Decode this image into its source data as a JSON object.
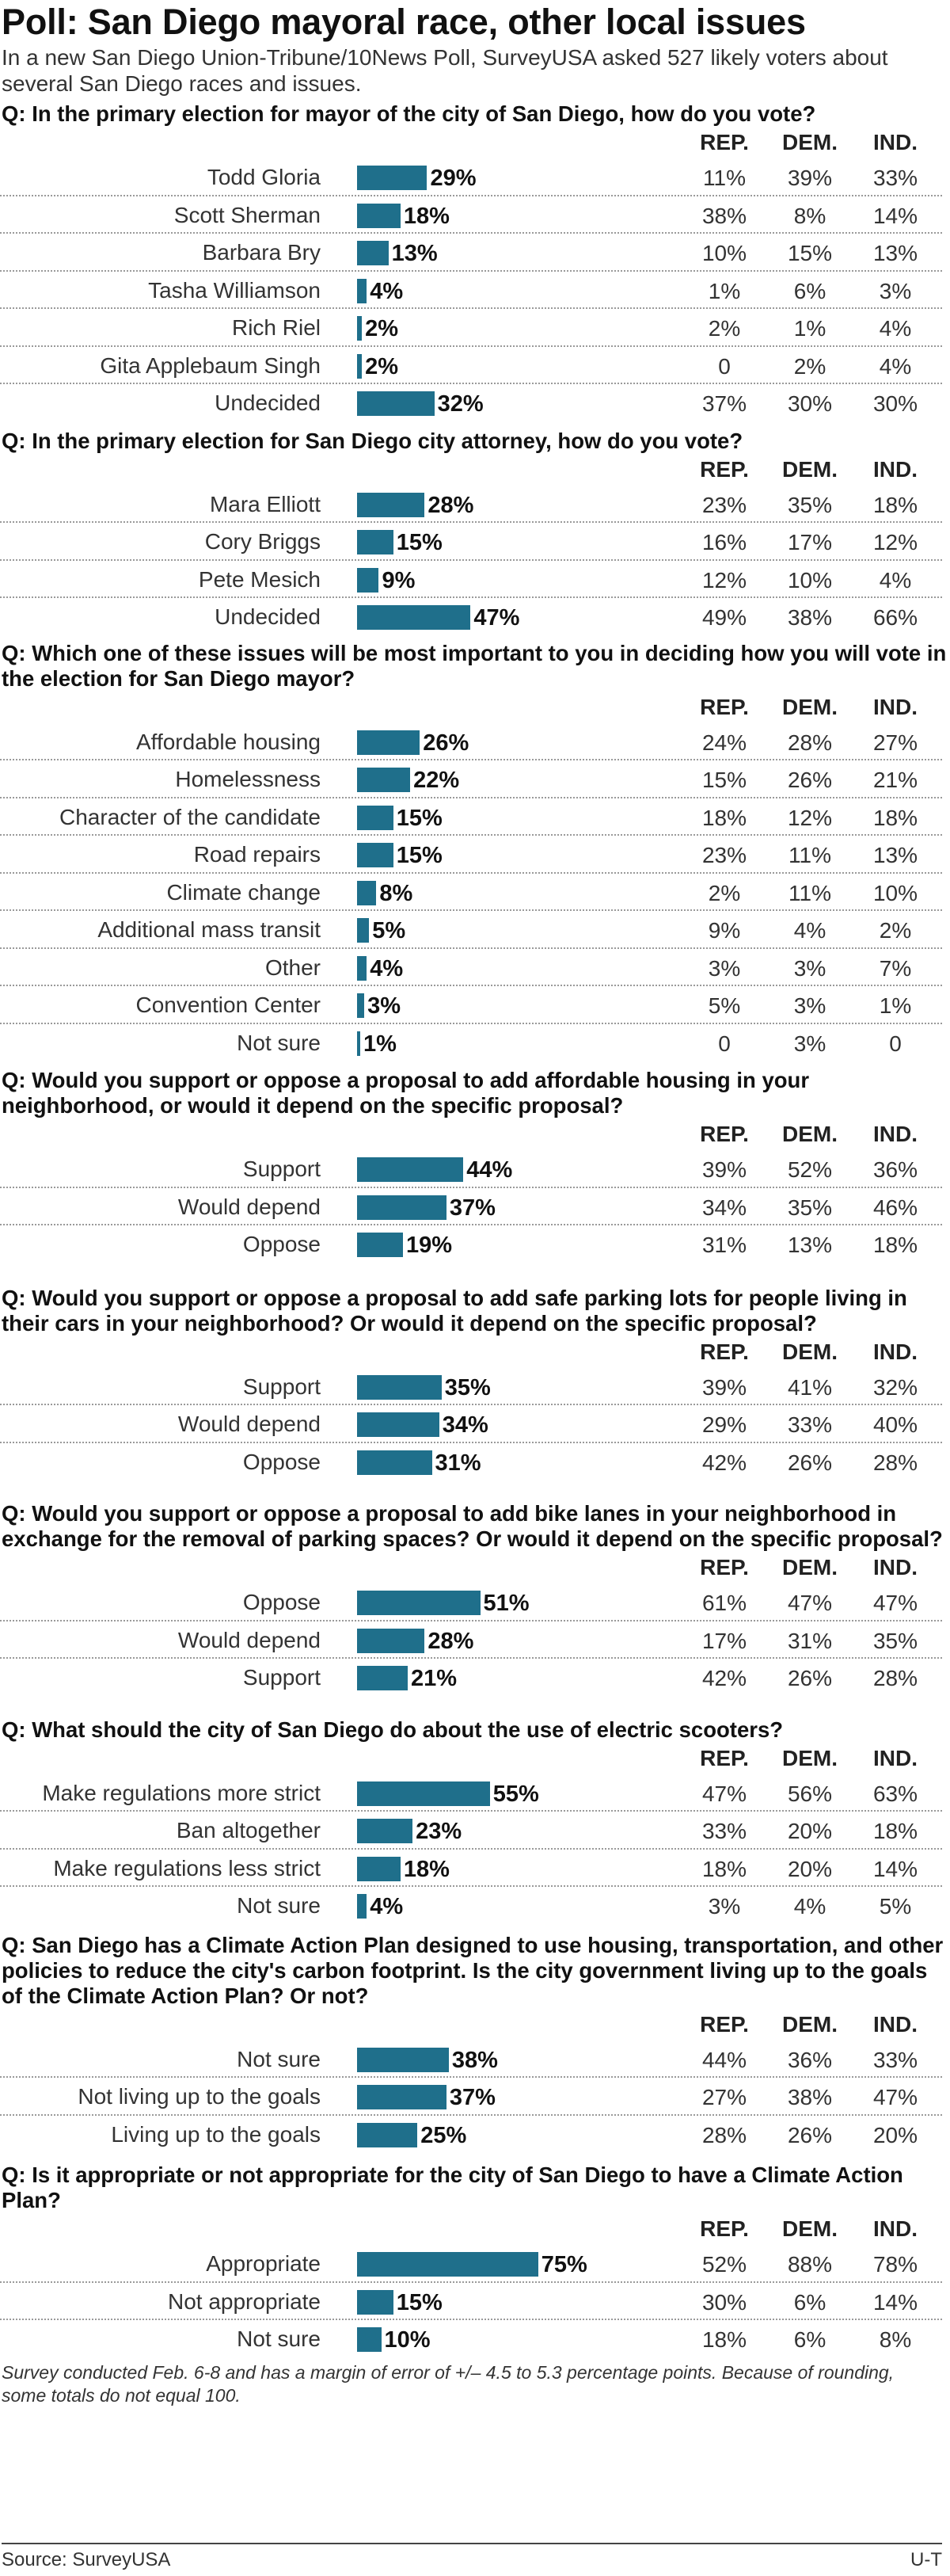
{
  "title": "Poll: San Diego mayoral race, other local issues",
  "intro": "In a new San Diego Union-Tribune/10News Poll, SurveyUSA asked 527 likely voters about several San Diego races and issues.",
  "column_headers": [
    "REP.",
    "DEM.",
    "IND."
  ],
  "colors": {
    "bar": "#1f6f8b"
  },
  "chart_data": [
    {
      "type": "bar",
      "title": "Q: In the primary election for mayor of the city of San Diego, how do you vote?",
      "categories": [
        "Todd Gloria",
        "Scott Sherman",
        "Barbara Bry",
        "Tasha Williamson",
        "Rich Riel",
        "Gita Applebaum Singh",
        "Undecided"
      ],
      "values": [
        29,
        18,
        13,
        4,
        2,
        2,
        32
      ],
      "labels": [
        "29%",
        "18%",
        "13%",
        "4%",
        "2%",
        "2%",
        "32%"
      ],
      "table": [
        [
          "11%",
          "39%",
          "33%"
        ],
        [
          "38%",
          "8%",
          "14%"
        ],
        [
          "10%",
          "15%",
          "13%"
        ],
        [
          "1%",
          "6%",
          "3%"
        ],
        [
          "2%",
          "1%",
          "4%"
        ],
        [
          "0",
          "2%",
          "4%"
        ],
        [
          "37%",
          "30%",
          "30%"
        ]
      ]
    },
    {
      "type": "bar",
      "title": "Q: In the primary election for San Diego city attorney, how do you vote?",
      "categories": [
        "Mara Elliott",
        "Cory Briggs",
        "Pete Mesich",
        "Undecided"
      ],
      "values": [
        28,
        15,
        9,
        47
      ],
      "labels": [
        "28%",
        "15%",
        "9%",
        "47%"
      ],
      "table": [
        [
          "23%",
          "35%",
          "18%"
        ],
        [
          "16%",
          "17%",
          "12%"
        ],
        [
          "12%",
          "10%",
          "4%"
        ],
        [
          "49%",
          "38%",
          "66%"
        ]
      ]
    },
    {
      "type": "bar",
      "title": "Q: Which one of these issues will be most important to you in deciding how you will vote in the election for San Diego mayor?",
      "categories": [
        "Affordable housing",
        "Homelessness",
        "Character of the candidate",
        "Road repairs",
        "Climate change",
        "Additional mass transit",
        "Other",
        "Convention Center",
        "Not sure"
      ],
      "values": [
        26,
        22,
        15,
        15,
        8,
        5,
        4,
        3,
        1
      ],
      "labels": [
        "26%",
        "22%",
        "15%",
        "15%",
        "8%",
        "5%",
        "4%",
        "3%",
        "1%"
      ],
      "table": [
        [
          "24%",
          "28%",
          "27%"
        ],
        [
          "15%",
          "26%",
          "21%"
        ],
        [
          "18%",
          "12%",
          "18%"
        ],
        [
          "23%",
          "11%",
          "13%"
        ],
        [
          "2%",
          "11%",
          "10%"
        ],
        [
          "9%",
          "4%",
          "2%"
        ],
        [
          "3%",
          "3%",
          "7%"
        ],
        [
          "5%",
          "3%",
          "1%"
        ],
        [
          "0",
          "3%",
          "0"
        ]
      ]
    },
    {
      "type": "bar",
      "title": "Q: Would you support or oppose a proposal to add affordable housing in your neighborhood, or would it depend on the specific proposal?",
      "categories": [
        "Support",
        "Would depend",
        "Oppose"
      ],
      "values": [
        44,
        37,
        19
      ],
      "labels": [
        "44%",
        "37%",
        "19%"
      ],
      "table": [
        [
          "39%",
          "52%",
          "36%"
        ],
        [
          "34%",
          "35%",
          "46%"
        ],
        [
          "31%",
          "13%",
          "18%"
        ]
      ]
    },
    {
      "type": "bar",
      "title": "Q: Would you support or oppose a proposal to add safe parking lots for people living in their cars in your neighborhood? Or would it depend on the specific proposal?",
      "categories": [
        "Support",
        "Would depend",
        "Oppose"
      ],
      "values": [
        35,
        34,
        31
      ],
      "labels": [
        "35%",
        "34%",
        "31%"
      ],
      "table": [
        [
          "39%",
          "41%",
          "32%"
        ],
        [
          "29%",
          "33%",
          "40%"
        ],
        [
          "42%",
          "26%",
          "28%"
        ]
      ]
    },
    {
      "type": "bar",
      "title": "Q: Would you support or oppose a proposal to add bike lanes in your neighborhood in exchange for the removal of parking spaces? Or would it depend on the specific proposal?",
      "categories": [
        "Oppose",
        "Would depend",
        "Support"
      ],
      "values": [
        51,
        28,
        21
      ],
      "labels": [
        "51%",
        "28%",
        "21%"
      ],
      "table": [
        [
          "61%",
          "47%",
          "47%"
        ],
        [
          "17%",
          "31%",
          "35%"
        ],
        [
          "42%",
          "26%",
          "28%"
        ]
      ]
    },
    {
      "type": "bar",
      "title": "Q: What should the city of San Diego do about the use of electric scooters?",
      "categories": [
        "Make regulations more strict",
        "Ban altogether",
        "Make regulations less strict",
        "Not sure"
      ],
      "values": [
        55,
        23,
        18,
        4
      ],
      "labels": [
        "55%",
        "23%",
        "18%",
        "4%"
      ],
      "table": [
        [
          "47%",
          "56%",
          "63%"
        ],
        [
          "33%",
          "20%",
          "18%"
        ],
        [
          "18%",
          "20%",
          "14%"
        ],
        [
          "3%",
          "4%",
          "5%"
        ]
      ]
    },
    {
      "type": "bar",
      "title": "Q: San Diego has a Climate Action Plan designed to use housing, transportation, and other policies to reduce the city's carbon footprint. Is the city government living up to the goals of the Climate Action Plan? Or not?",
      "categories": [
        "Not sure",
        "Not living up to the goals",
        "Living up to the goals"
      ],
      "values": [
        38,
        37,
        25
      ],
      "labels": [
        "38%",
        "37%",
        "25%"
      ],
      "table": [
        [
          "44%",
          "36%",
          "33%"
        ],
        [
          "27%",
          "38%",
          "47%"
        ],
        [
          "28%",
          "26%",
          "20%"
        ]
      ]
    },
    {
      "type": "bar",
      "title": "Q: Is it appropriate or not appropriate for the city of San Diego to have a Climate Action Plan?",
      "categories": [
        "Appropriate",
        "Not appropriate",
        "Not sure"
      ],
      "values": [
        75,
        15,
        10
      ],
      "labels": [
        "75%",
        "15%",
        "10%"
      ],
      "table": [
        [
          "52%",
          "88%",
          "78%"
        ],
        [
          "30%",
          "6%",
          "14%"
        ],
        [
          "18%",
          "6%",
          "8%"
        ]
      ]
    }
  ],
  "footnote": "Survey conducted Feb. 6-8 and has a margin of error of +/– 4.5 to 5.3 percentage points. Because of rounding, some totals do not equal 100.",
  "source": "Source: SurveyUSA",
  "credit": "U-T"
}
